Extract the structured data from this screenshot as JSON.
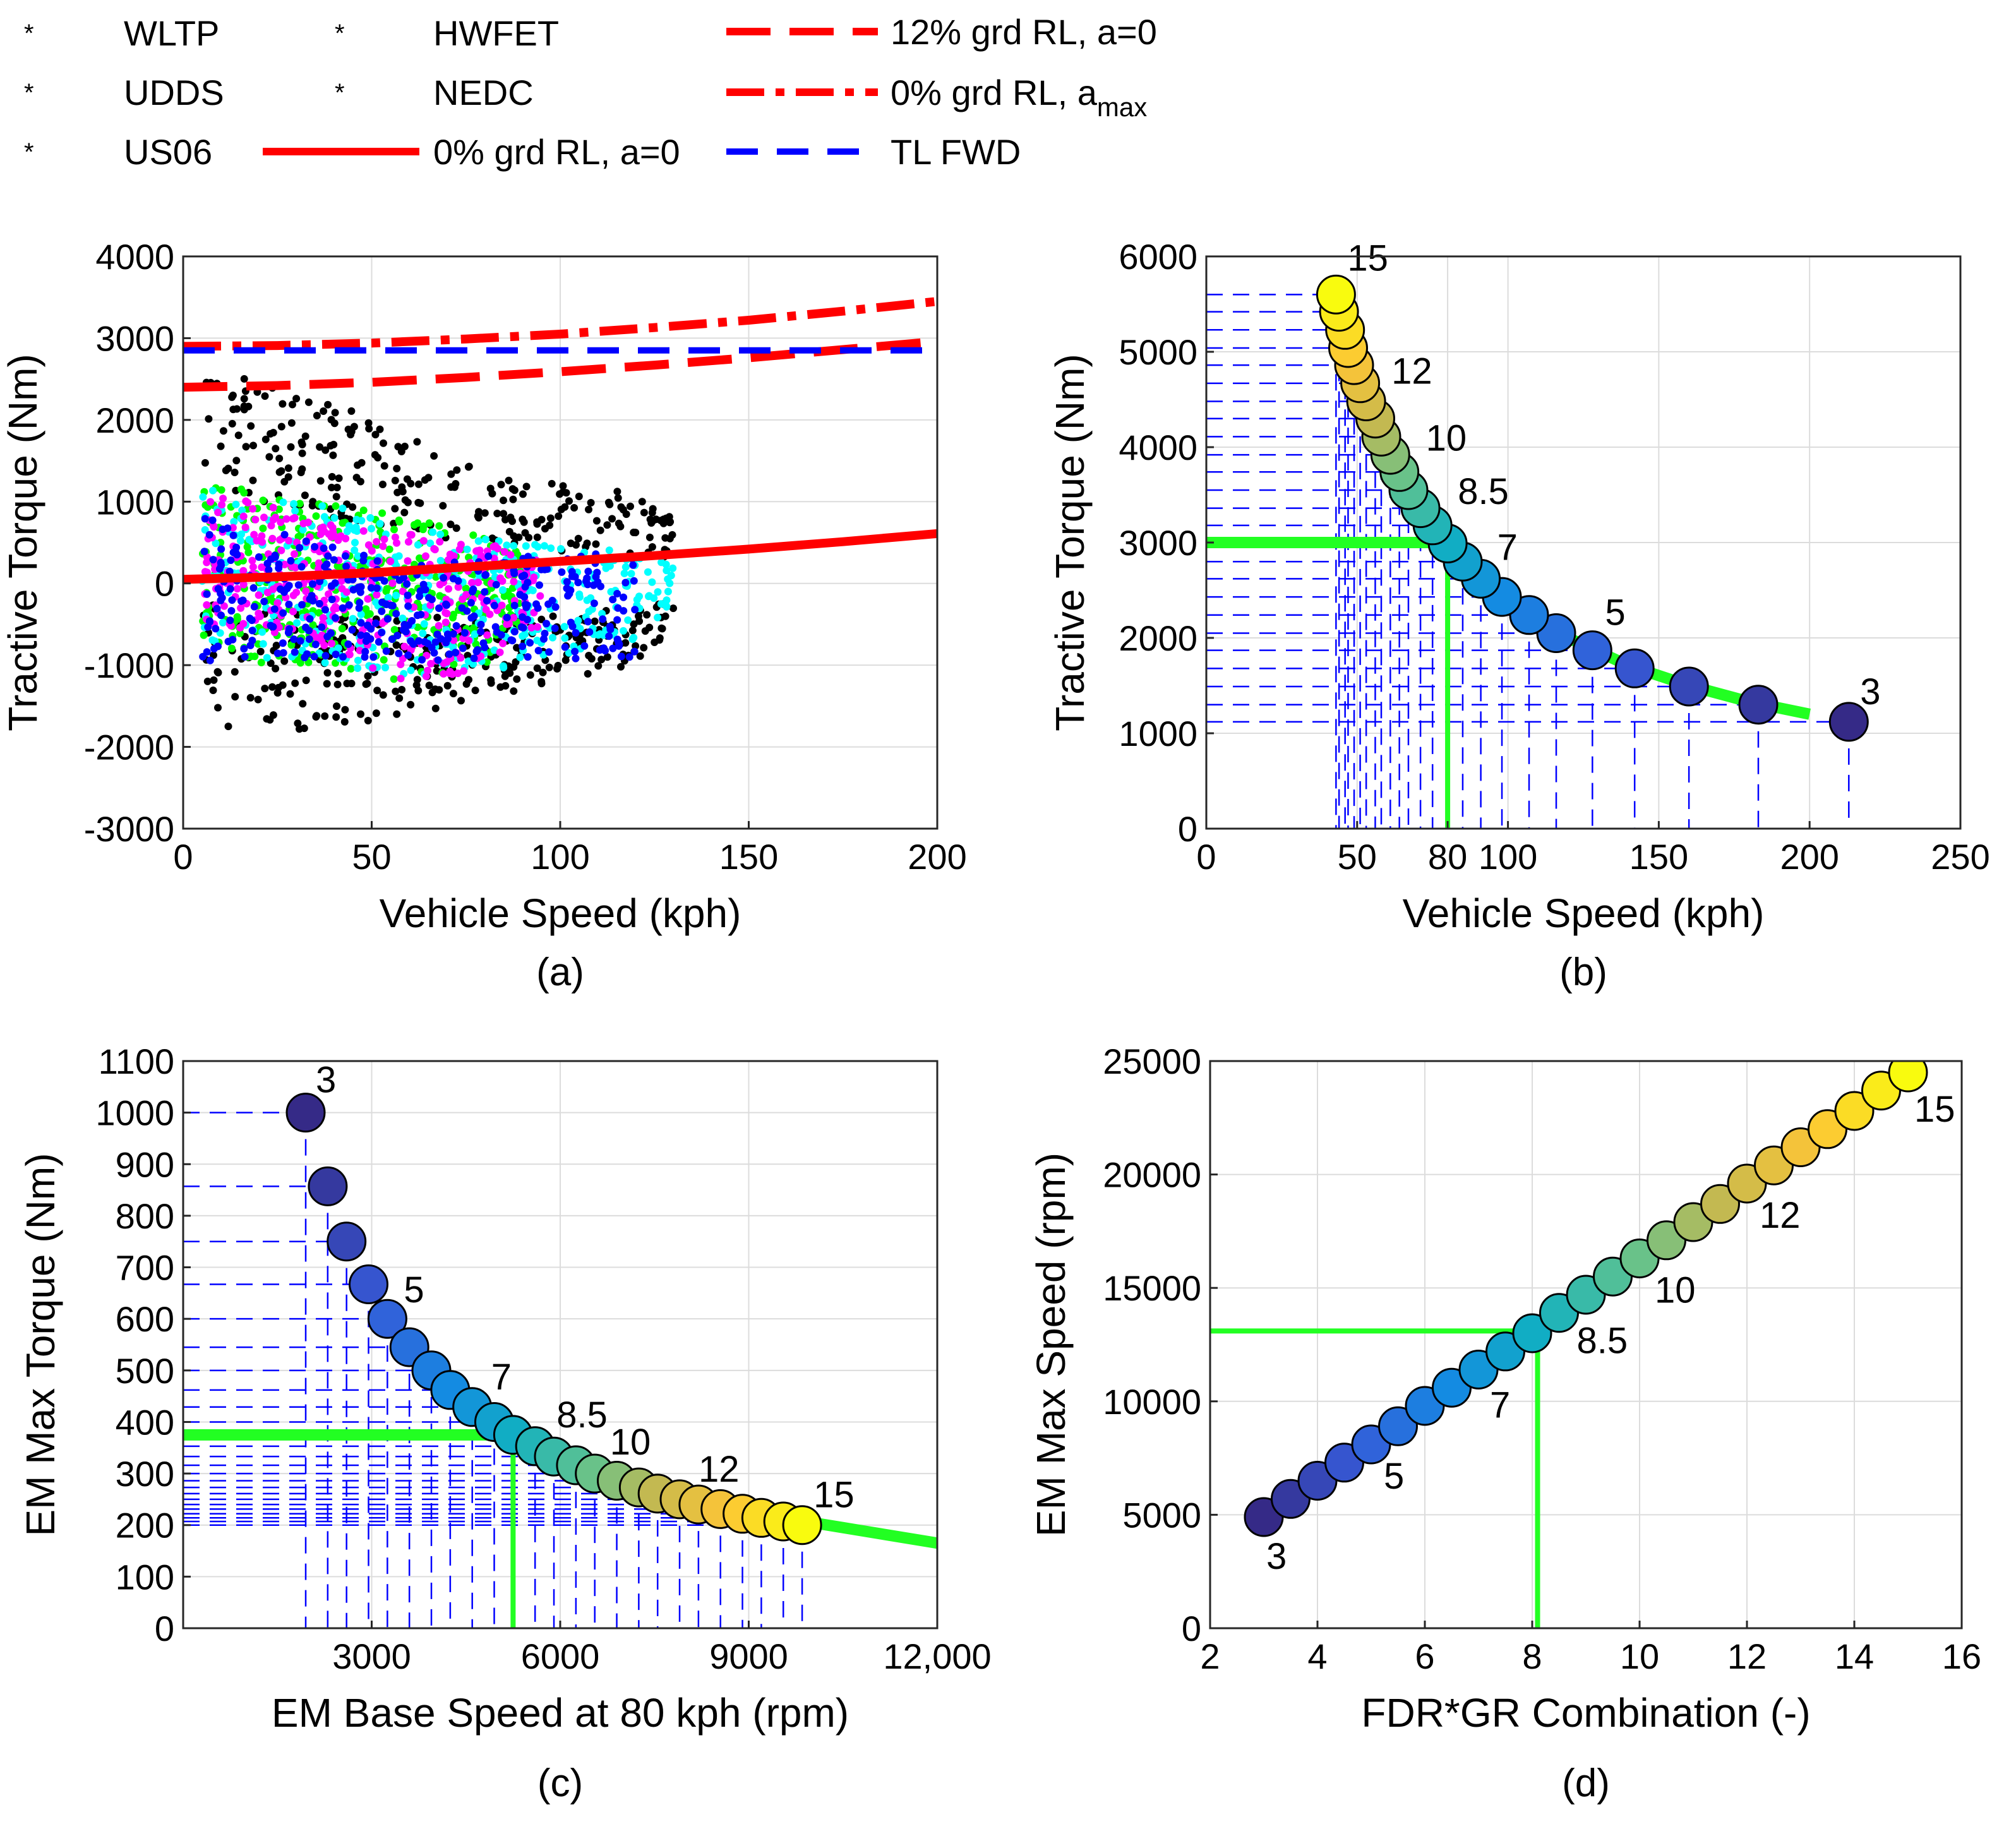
{
  "legend": {
    "markers": [
      {
        "label": "WLTP",
        "color": "#00FFFF"
      },
      {
        "label": "UDDS",
        "color": "#00FF00"
      },
      {
        "label": "US06",
        "color": "#000000"
      },
      {
        "label": "HWFET",
        "color": "#FF00FF"
      },
      {
        "label": "NEDC",
        "color": "#0000FF"
      }
    ],
    "lines": [
      {
        "label": "0% grd RL, a=0",
        "color": "#FF0000",
        "style": "solid"
      },
      {
        "label": "12% grd RL, a=0",
        "color": "#FF0000",
        "style": "dashed"
      },
      {
        "label": "0% grd RL, a",
        "sub": "max",
        "color": "#FF0000",
        "style": "dashdot"
      },
      {
        "label": "TL FWD",
        "color": "#0000FF",
        "style": "dashed"
      }
    ]
  },
  "chart_data": [
    {
      "id": "a",
      "type": "scatter",
      "caption": "(a)",
      "xlabel": "Vehicle Speed (kph)",
      "ylabel": "Tractive Torque (Nm)",
      "xlim": [
        0,
        200
      ],
      "ylim": [
        -3000,
        4000
      ],
      "xticks": [
        "0",
        "50",
        "100",
        "150",
        "200"
      ],
      "yticks": [
        "-3000",
        "-2000",
        "-1000",
        "0",
        "1000",
        "2000",
        "3000",
        "4000"
      ],
      "grid": true,
      "series": [
        {
          "name": "0% grd RL, a=0",
          "x": [
            0,
            25,
            50,
            75,
            100,
            125,
            150,
            175,
            200
          ],
          "y": [
            50,
            80,
            130,
            200,
            270,
            340,
            420,
            510,
            610
          ]
        },
        {
          "name": "12% grd RL, a=0",
          "x": [
            0,
            25,
            50,
            75,
            100,
            125,
            150,
            175,
            200
          ],
          "y": [
            2400,
            2420,
            2460,
            2520,
            2590,
            2670,
            2760,
            2860,
            2960
          ]
        },
        {
          "name": "0% grd RL, amax",
          "x": [
            0,
            25,
            50,
            75,
            100,
            125,
            150,
            175,
            200
          ],
          "y": [
            2900,
            2910,
            2940,
            2990,
            3050,
            3130,
            3220,
            3330,
            3450
          ]
        },
        {
          "name": "TL FWD",
          "x": [
            0,
            200
          ],
          "y": [
            2850,
            2850
          ]
        }
      ],
      "scatter_envelopes": [
        {
          "name": "WLTP",
          "x": [
            5,
            20,
            40,
            60,
            80,
            100,
            120,
            130
          ],
          "ymax": [
            1150,
            1100,
            950,
            700,
            550,
            450,
            400,
            300
          ],
          "ymin": [
            -700,
            -900,
            -1100,
            -1200,
            -1100,
            -900,
            -700,
            -300
          ]
        },
        {
          "name": "UDDS",
          "x": [
            5,
            20,
            40,
            60,
            80,
            90
          ],
          "ymax": [
            1200,
            1150,
            1000,
            800,
            600,
            400
          ],
          "ymin": [
            -800,
            -1000,
            -1150,
            -1200,
            -1000,
            -500
          ]
        },
        {
          "name": "US06",
          "x": [
            5,
            20,
            40,
            60,
            80,
            100,
            120,
            130
          ],
          "ymax": [
            2700,
            2500,
            2200,
            1800,
            1400,
            1200,
            1100,
            800
          ],
          "ymin": [
            -1700,
            -1850,
            -1800,
            -1600,
            -1400,
            -1200,
            -1000,
            -700
          ]
        },
        {
          "name": "HWFET",
          "x": [
            5,
            20,
            40,
            60,
            80,
            95
          ],
          "ymax": [
            1100,
            1000,
            700,
            600,
            500,
            300
          ],
          "ymin": [
            -500,
            -600,
            -800,
            -1300,
            -1000,
            -500
          ]
        },
        {
          "name": "NEDC",
          "x": [
            5,
            20,
            40,
            60,
            80,
            100,
            120
          ],
          "ymax": [
            800,
            700,
            500,
            300,
            350,
            350,
            400
          ],
          "ymin": [
            -950,
            -950,
            -950,
            -950,
            -950,
            -950,
            -950
          ]
        }
      ]
    },
    {
      "id": "b",
      "type": "scatter",
      "caption": "(b)",
      "xlabel": "Vehicle Speed (kph)",
      "ylabel": "Tractive Torque (Nm)",
      "xlim": [
        0,
        250
      ],
      "ylim": [
        0,
        6000
      ],
      "xticks": [
        "0",
        "50",
        "80",
        "100",
        "150",
        "200",
        "250"
      ],
      "xtick_values": [
        0,
        50,
        80,
        100,
        150,
        200,
        250
      ],
      "yticks": [
        "0",
        "1000",
        "2000",
        "3000",
        "4000",
        "5000",
        "6000"
      ],
      "grid": true,
      "points": [
        {
          "fdr_gr": 3,
          "x": 213,
          "y": 1120
        },
        {
          "fdr_gr": 3.5,
          "x": 183,
          "y": 1300
        },
        {
          "fdr_gr": 4,
          "x": 160,
          "y": 1490
        },
        {
          "fdr_gr": 4.5,
          "x": 142,
          "y": 1680
        },
        {
          "fdr_gr": 5,
          "x": 128,
          "y": 1870
        },
        {
          "fdr_gr": 5.5,
          "x": 116,
          "y": 2050
        },
        {
          "fdr_gr": 6,
          "x": 107,
          "y": 2240
        },
        {
          "fdr_gr": 6.5,
          "x": 98,
          "y": 2430
        },
        {
          "fdr_gr": 7,
          "x": 91,
          "y": 2620
        },
        {
          "fdr_gr": 7.5,
          "x": 85,
          "y": 2800
        },
        {
          "fdr_gr": 8,
          "x": 80,
          "y": 2990
        },
        {
          "fdr_gr": 8.5,
          "x": 75,
          "y": 3180
        },
        {
          "fdr_gr": 9,
          "x": 71,
          "y": 3360
        },
        {
          "fdr_gr": 9.5,
          "x": 67,
          "y": 3550
        },
        {
          "fdr_gr": 10,
          "x": 64,
          "y": 3740
        },
        {
          "fdr_gr": 10.5,
          "x": 61,
          "y": 3920
        },
        {
          "fdr_gr": 11,
          "x": 58,
          "y": 4110
        },
        {
          "fdr_gr": 11.5,
          "x": 56,
          "y": 4300
        },
        {
          "fdr_gr": 12,
          "x": 53,
          "y": 4480
        },
        {
          "fdr_gr": 12.5,
          "x": 51,
          "y": 4670
        },
        {
          "fdr_gr": 13,
          "x": 49,
          "y": 4860
        },
        {
          "fdr_gr": 13.5,
          "x": 47,
          "y": 5040
        },
        {
          "fdr_gr": 14,
          "x": 46,
          "y": 5230
        },
        {
          "fdr_gr": 14.5,
          "x": 44,
          "y": 5420
        },
        {
          "fdr_gr": 15,
          "x": 43,
          "y": 5600
        }
      ],
      "point_labels": [
        "3",
        "5",
        "7",
        "8.5",
        "10",
        "12",
        "15"
      ],
      "requirement_line": {
        "x": [
          0,
          84,
          90,
          100,
          120,
          140,
          160,
          180,
          200
        ],
        "y": [
          3000,
          3000,
          2700,
          2400,
          2000,
          1710,
          1500,
          1330,
          1200
        ]
      },
      "vertical_marker_x": 80
    },
    {
      "id": "c",
      "type": "scatter",
      "caption": "(c)",
      "xlabel": "EM Base Speed at 80 kph (rpm)",
      "ylabel": "EM Max Torque (Nm)",
      "xlim": [
        0,
        12000
      ],
      "ylim": [
        0,
        1100
      ],
      "xticks": [
        "3000",
        "6000",
        "9000",
        "12,000"
      ],
      "xtick_values": [
        3000,
        6000,
        9000,
        12000
      ],
      "yticks": [
        "0",
        "100",
        "200",
        "300",
        "400",
        "500",
        "600",
        "700",
        "800",
        "900",
        "1000",
        "1100"
      ],
      "grid": true,
      "points": [
        {
          "fdr_gr": 3,
          "x": 1950,
          "y": 1000
        },
        {
          "fdr_gr": 3.5,
          "x": 2300,
          "y": 857
        },
        {
          "fdr_gr": 4,
          "x": 2600,
          "y": 750
        },
        {
          "fdr_gr": 4.5,
          "x": 2950,
          "y": 667
        },
        {
          "fdr_gr": 5,
          "x": 3250,
          "y": 600
        },
        {
          "fdr_gr": 5.5,
          "x": 3600,
          "y": 545
        },
        {
          "fdr_gr": 6,
          "x": 3950,
          "y": 500
        },
        {
          "fdr_gr": 6.5,
          "x": 4250,
          "y": 462
        },
        {
          "fdr_gr": 7,
          "x": 4600,
          "y": 429
        },
        {
          "fdr_gr": 7.5,
          "x": 4950,
          "y": 400
        },
        {
          "fdr_gr": 8,
          "x": 5250,
          "y": 375
        },
        {
          "fdr_gr": 8.5,
          "x": 5600,
          "y": 353
        },
        {
          "fdr_gr": 9,
          "x": 5900,
          "y": 333
        },
        {
          "fdr_gr": 9.5,
          "x": 6250,
          "y": 316
        },
        {
          "fdr_gr": 10,
          "x": 6550,
          "y": 300
        },
        {
          "fdr_gr": 10.5,
          "x": 6900,
          "y": 286
        },
        {
          "fdr_gr": 11,
          "x": 7250,
          "y": 273
        },
        {
          "fdr_gr": 11.5,
          "x": 7550,
          "y": 261
        },
        {
          "fdr_gr": 12,
          "x": 7900,
          "y": 250
        },
        {
          "fdr_gr": 12.5,
          "x": 8200,
          "y": 240
        },
        {
          "fdr_gr": 13,
          "x": 8550,
          "y": 231
        },
        {
          "fdr_gr": 13.5,
          "x": 8900,
          "y": 222
        },
        {
          "fdr_gr": 14,
          "x": 9200,
          "y": 214
        },
        {
          "fdr_gr": 14.5,
          "x": 9550,
          "y": 207
        },
        {
          "fdr_gr": 15,
          "x": 9850,
          "y": 200
        }
      ],
      "point_labels": [
        "3",
        "5",
        "7",
        "8.5",
        "10",
        "12",
        "15"
      ],
      "requirement_line": {
        "x": [
          0,
          5250,
          5600,
          6500,
          7500,
          8500,
          9500,
          10500,
          12000
        ],
        "y": [
          375,
          375,
          345,
          300,
          265,
          240,
          215,
          195,
          165
        ]
      },
      "vertical_marker_x": 5250
    },
    {
      "id": "d",
      "type": "scatter",
      "caption": "(d)",
      "xlabel": "FDR*GR Combination (-)",
      "ylabel": "EM Max Speed (rpm)",
      "xlim": [
        2,
        16
      ],
      "ylim": [
        0,
        25000
      ],
      "xticks": [
        "2",
        "4",
        "6",
        "8",
        "10",
        "12",
        "14",
        "16"
      ],
      "yticks": [
        "0",
        "5000",
        "10000",
        "15000",
        "20000",
        "25000"
      ],
      "grid": true,
      "points": [
        {
          "x": 3.0,
          "y": 4900
        },
        {
          "x": 3.5,
          "y": 5700
        },
        {
          "x": 4.0,
          "y": 6500
        },
        {
          "x": 4.5,
          "y": 7300
        },
        {
          "x": 5.0,
          "y": 8100
        },
        {
          "x": 5.5,
          "y": 8900
        },
        {
          "x": 6.0,
          "y": 9800
        },
        {
          "x": 6.5,
          "y": 10600
        },
        {
          "x": 7.0,
          "y": 11400
        },
        {
          "x": 7.5,
          "y": 12200
        },
        {
          "x": 8.0,
          "y": 13000
        },
        {
          "x": 8.5,
          "y": 13900
        },
        {
          "x": 9.0,
          "y": 14700
        },
        {
          "x": 9.5,
          "y": 15500
        },
        {
          "x": 10.0,
          "y": 16300
        },
        {
          "x": 10.5,
          "y": 17100
        },
        {
          "x": 11.0,
          "y": 17900
        },
        {
          "x": 11.5,
          "y": 18700
        },
        {
          "x": 12.0,
          "y": 19600
        },
        {
          "x": 12.5,
          "y": 20400
        },
        {
          "x": 13.0,
          "y": 21200
        },
        {
          "x": 13.5,
          "y": 22000
        },
        {
          "x": 14.0,
          "y": 22800
        },
        {
          "x": 14.5,
          "y": 23700
        },
        {
          "x": 15.0,
          "y": 24500
        }
      ],
      "point_labels": [
        "3",
        "5",
        "7",
        "8.5",
        "10",
        "12",
        "15"
      ],
      "requirement_line": {
        "x": [
          2,
          8.1,
          8.1
        ],
        "y": [
          13100,
          13100,
          0
        ]
      }
    }
  ]
}
